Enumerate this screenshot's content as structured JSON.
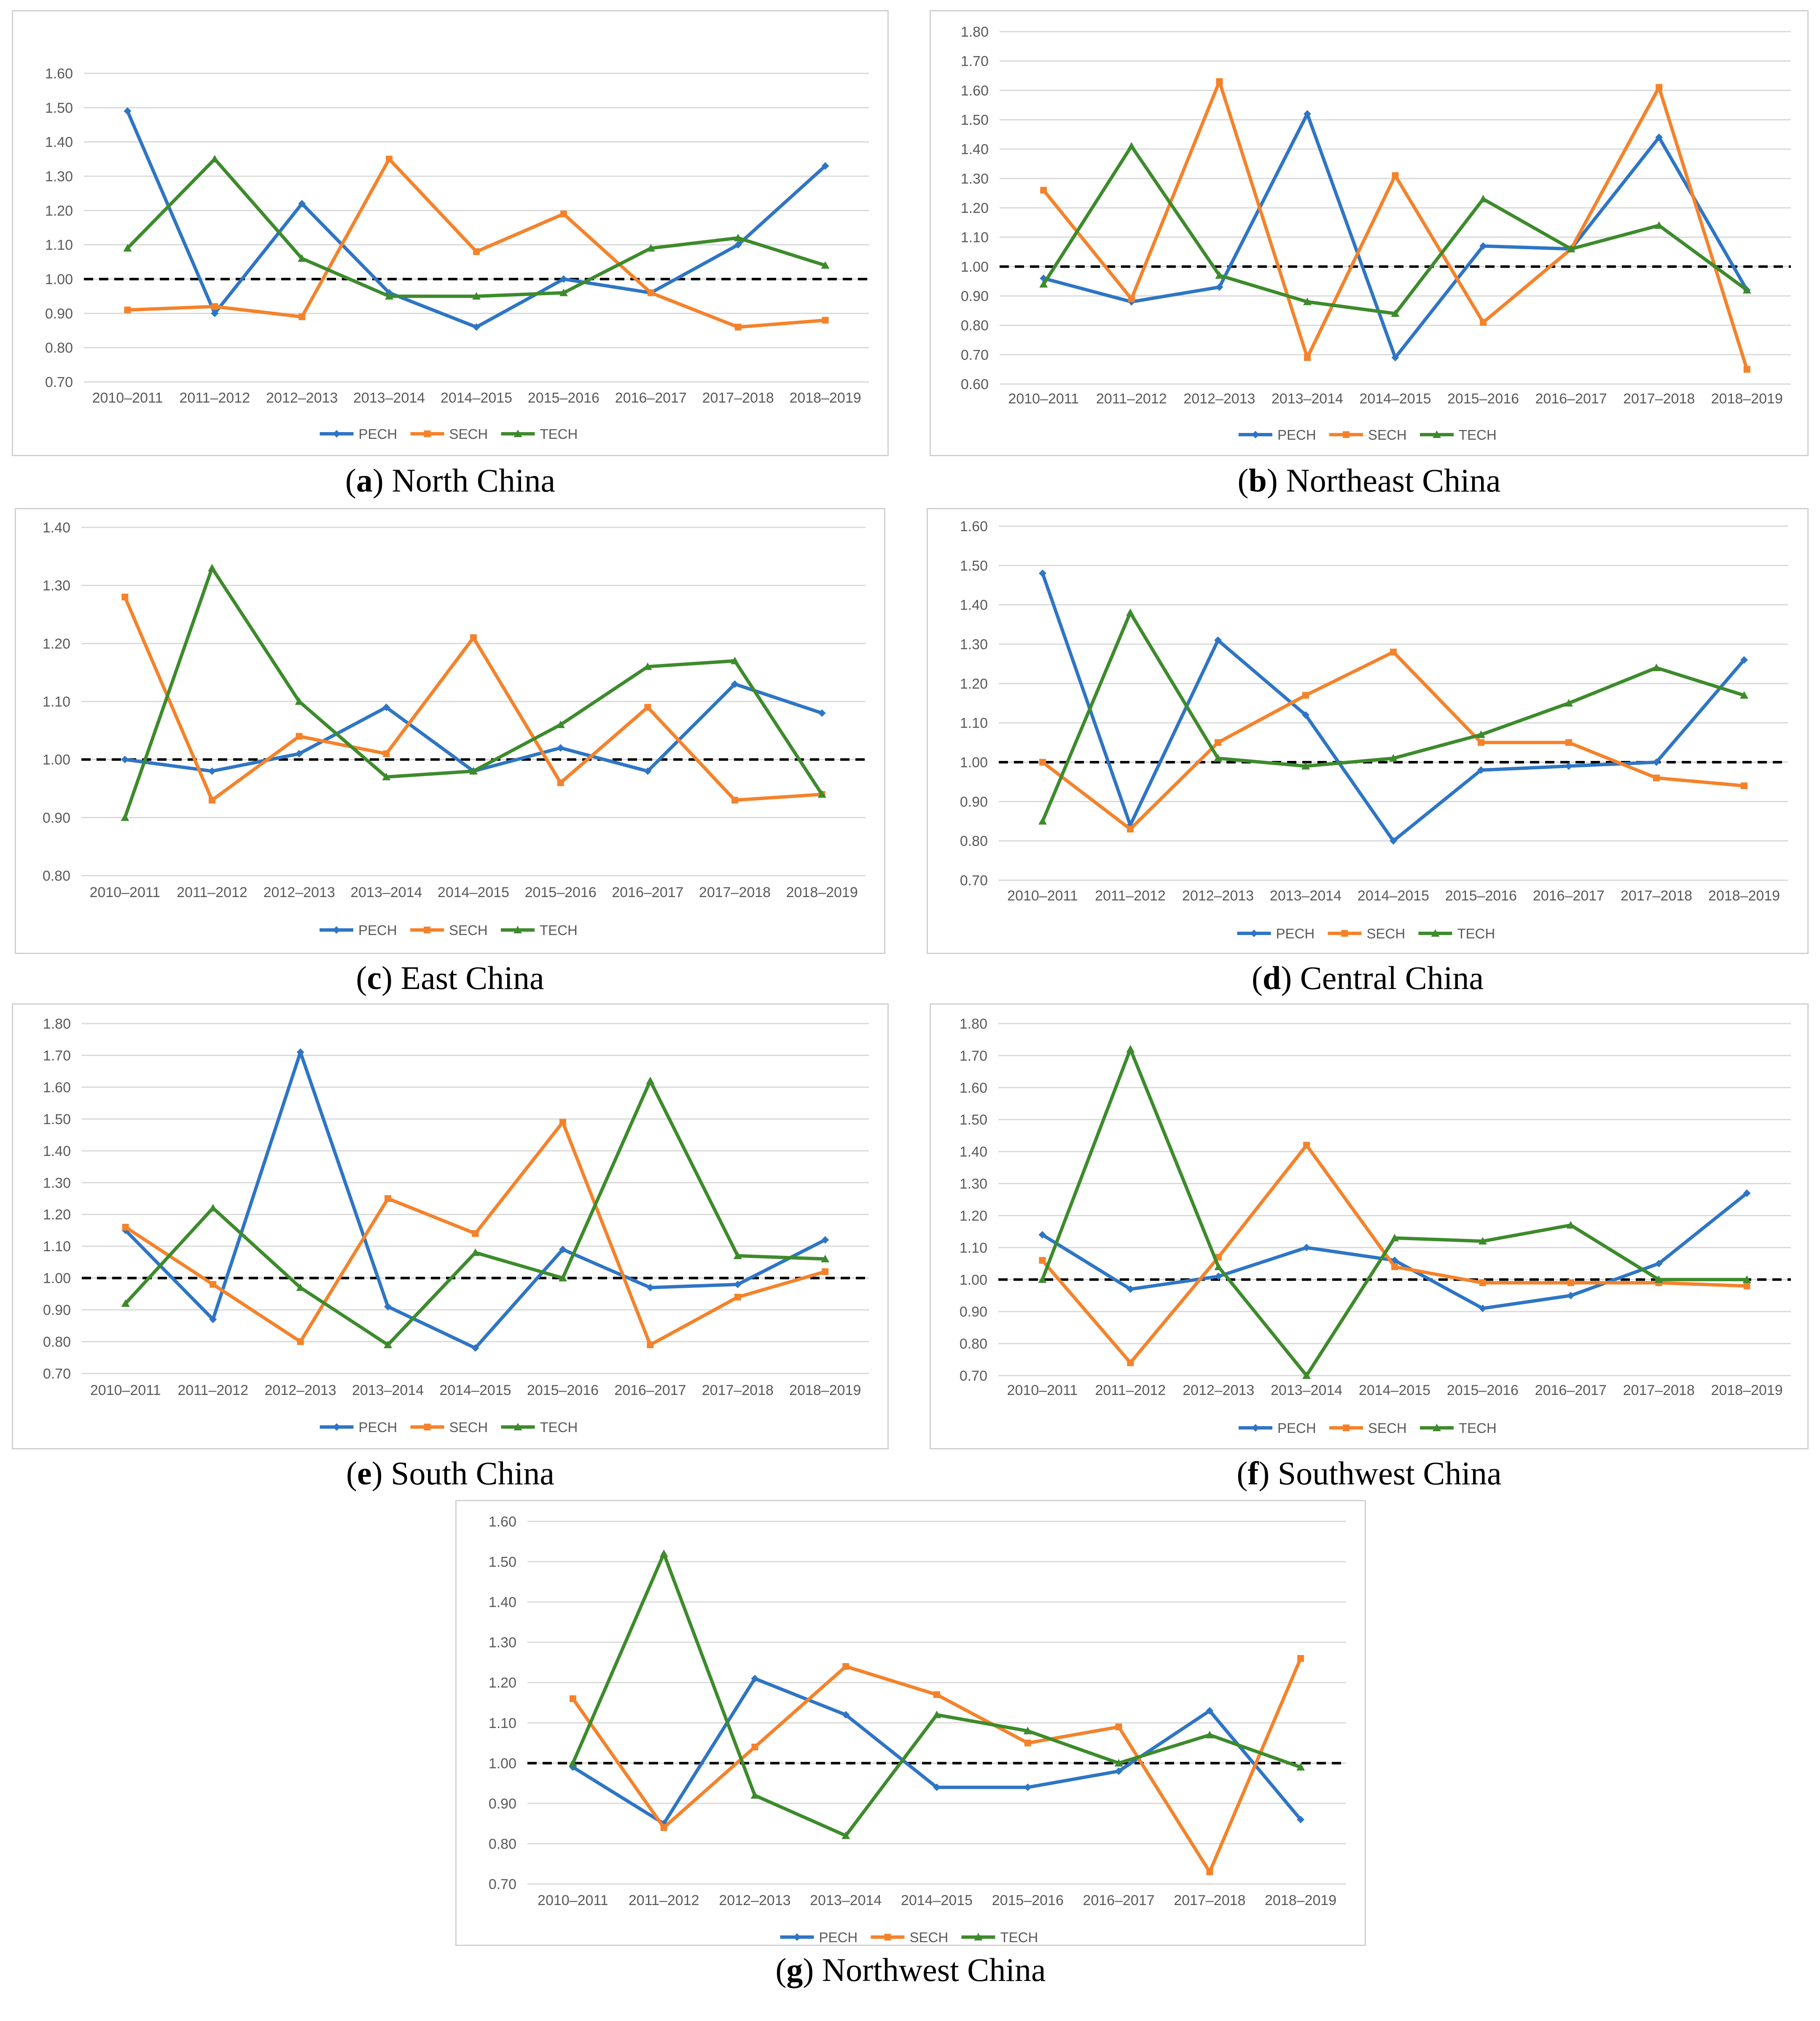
{
  "colors": {
    "PECH": "#2E75C5",
    "SECH": "#F5822A",
    "TECH": "#3D8B2C",
    "grid": "#d9d9d9",
    "reference": "#000000"
  },
  "periods": [
    "2010–2011",
    "2011–2012",
    "2012–2013",
    "2013–2014",
    "2014–2015",
    "2015–2016",
    "2016–2017",
    "2017–2018",
    "2018–2019"
  ],
  "legend": [
    "PECH",
    "SECH",
    "TECH"
  ],
  "chart_data": [
    {
      "type": "line",
      "letter": "a",
      "region": "North China",
      "yticks": [
        "1.60",
        "1.50",
        "1.40",
        "1.30",
        "1.20",
        "1.10",
        "1.00",
        "0.90",
        "0.80",
        "0.70"
      ],
      "ylim": [
        0.7,
        1.6
      ],
      "reference": 1.0,
      "series": [
        {
          "name": "PECH",
          "values": [
            1.49,
            0.9,
            1.22,
            0.96,
            0.86,
            1.0,
            0.96,
            1.1,
            1.33
          ]
        },
        {
          "name": "SECH",
          "values": [
            0.91,
            0.92,
            0.89,
            1.35,
            1.08,
            1.19,
            0.96,
            0.86,
            0.88
          ]
        },
        {
          "name": "TECH",
          "values": [
            1.09,
            1.35,
            1.06,
            0.95,
            0.95,
            0.96,
            1.09,
            1.12,
            1.04
          ]
        }
      ]
    },
    {
      "type": "line",
      "letter": "b",
      "region": "Northeast China",
      "yticks": [
        "1.80",
        "1.70",
        "1.60",
        "1.50",
        "1.40",
        "1.30",
        "1.20",
        "1.10",
        "1.00",
        "0.90",
        "0.80",
        "0.70",
        "0.60"
      ],
      "ylim": [
        0.6,
        1.8
      ],
      "reference": 1.0,
      "series": [
        {
          "name": "PECH",
          "values": [
            0.96,
            0.88,
            0.93,
            1.52,
            0.69,
            1.07,
            1.06,
            1.44,
            0.92
          ]
        },
        {
          "name": "SECH",
          "values": [
            1.26,
            0.89,
            1.63,
            0.69,
            1.31,
            0.81,
            1.06,
            1.61,
            0.65
          ]
        },
        {
          "name": "TECH",
          "values": [
            0.94,
            1.41,
            0.97,
            0.88,
            0.84,
            1.23,
            1.06,
            1.14,
            0.92
          ]
        }
      ]
    },
    {
      "type": "line",
      "letter": "c",
      "region": "East China",
      "yticks": [
        "1.40",
        "1.30",
        "1.20",
        "1.10",
        "1.00",
        "0.90",
        "0.80"
      ],
      "ylim": [
        0.8,
        1.4
      ],
      "reference": 1.0,
      "series": [
        {
          "name": "PECH",
          "values": [
            1.0,
            0.98,
            1.01,
            1.09,
            0.98,
            1.02,
            0.98,
            1.13,
            1.08
          ]
        },
        {
          "name": "SECH",
          "values": [
            1.28,
            0.93,
            1.04,
            1.01,
            1.21,
            0.96,
            1.09,
            0.93,
            0.94
          ]
        },
        {
          "name": "TECH",
          "values": [
            0.9,
            1.33,
            1.1,
            0.97,
            0.98,
            1.06,
            1.16,
            1.17,
            0.94
          ]
        }
      ]
    },
    {
      "type": "line",
      "letter": "d",
      "region": "Central China",
      "yticks": [
        "1.60",
        "1.50",
        "1.40",
        "1.30",
        "1.20",
        "1.10",
        "1.00",
        "0.90",
        "0.80",
        "0.70"
      ],
      "ylim": [
        0.7,
        1.6
      ],
      "reference": 1.0,
      "series": [
        {
          "name": "PECH",
          "values": [
            1.48,
            0.84,
            1.31,
            1.12,
            0.8,
            0.98,
            0.99,
            1.0,
            1.26
          ]
        },
        {
          "name": "SECH",
          "values": [
            1.0,
            0.83,
            1.05,
            1.17,
            1.28,
            1.05,
            1.05,
            0.96,
            0.94
          ]
        },
        {
          "name": "TECH",
          "values": [
            0.85,
            1.38,
            1.01,
            0.99,
            1.01,
            1.07,
            1.15,
            1.24,
            1.17
          ]
        }
      ]
    },
    {
      "type": "line",
      "letter": "e",
      "region": "South China",
      "yticks": [
        "1.80",
        "1.70",
        "1.60",
        "1.50",
        "1.40",
        "1.30",
        "1.20",
        "1.10",
        "1.00",
        "0.90",
        "0.80",
        "0.70"
      ],
      "ylim": [
        0.7,
        1.8
      ],
      "reference": 1.0,
      "series": [
        {
          "name": "PECH",
          "values": [
            1.15,
            0.87,
            1.71,
            0.91,
            0.78,
            1.09,
            0.97,
            0.98,
            1.12
          ]
        },
        {
          "name": "SECH",
          "values": [
            1.16,
            0.98,
            0.8,
            1.25,
            1.14,
            1.49,
            0.79,
            0.94,
            1.02
          ]
        },
        {
          "name": "TECH",
          "values": [
            0.92,
            1.22,
            0.97,
            0.79,
            1.08,
            1.0,
            1.62,
            1.07,
            1.06
          ]
        }
      ]
    },
    {
      "type": "line",
      "letter": "f",
      "region": "Southwest China",
      "yticks": [
        "1.80",
        "1.70",
        "1.60",
        "1.50",
        "1.40",
        "1.30",
        "1.20",
        "1.10",
        "1.00",
        "0.90",
        "0.80",
        "0.70"
      ],
      "ylim": [
        0.7,
        1.8
      ],
      "reference": 1.0,
      "series": [
        {
          "name": "PECH",
          "values": [
            1.14,
            0.97,
            1.01,
            1.1,
            1.06,
            0.91,
            0.95,
            1.05,
            1.27
          ]
        },
        {
          "name": "SECH",
          "values": [
            1.06,
            0.74,
            1.07,
            1.42,
            1.04,
            0.99,
            0.99,
            0.99,
            0.98
          ]
        },
        {
          "name": "TECH",
          "values": [
            1.0,
            1.72,
            1.04,
            0.7,
            1.13,
            1.12,
            1.17,
            1.0,
            1.0
          ]
        }
      ]
    },
    {
      "type": "line",
      "letter": "g",
      "region": "Northwest China",
      "yticks": [
        "1.60",
        "1.50",
        "1.40",
        "1.30",
        "1.20",
        "1.10",
        "1.00",
        "0.90",
        "0.80",
        "0.70"
      ],
      "ylim": [
        0.7,
        1.6
      ],
      "reference": 1.0,
      "series": [
        {
          "name": "PECH",
          "values": [
            0.99,
            0.85,
            1.21,
            1.12,
            0.94,
            0.94,
            0.98,
            1.13,
            0.86
          ]
        },
        {
          "name": "SECH",
          "values": [
            1.16,
            0.84,
            1.04,
            1.24,
            1.17,
            1.05,
            1.09,
            0.73,
            1.26
          ]
        },
        {
          "name": "TECH",
          "values": [
            1.0,
            1.52,
            0.92,
            0.82,
            1.12,
            1.08,
            1.0,
            1.07,
            0.99
          ]
        }
      ]
    }
  ]
}
